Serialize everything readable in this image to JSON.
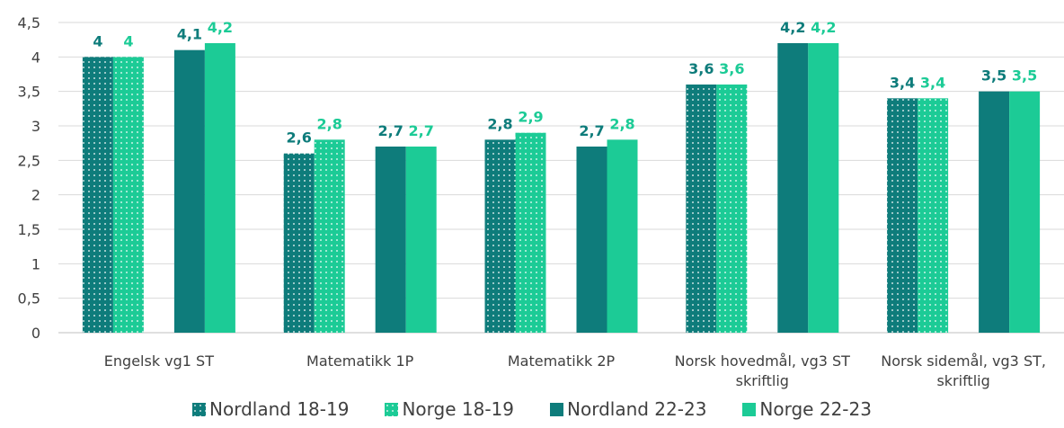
{
  "chart_data": {
    "type": "bar",
    "categories": [
      "Engelsk vg1 ST",
      "Matematikk 1P",
      "Matematikk 2P",
      "Norsk hovedmål, vg3 ST skriftlig",
      "Norsk sidemål, vg3 ST, skriftlig"
    ],
    "series": [
      {
        "name": "Nordland 18-19",
        "color": "#0e7c7b",
        "pattern": "dotted",
        "values": [
          4,
          2.6,
          2.8,
          3.6,
          3.4
        ],
        "value_labels": [
          "4",
          "2,6",
          "2,8",
          "3,6",
          "3,4"
        ]
      },
      {
        "name": "Norge 18-19",
        "color": "#1ccb96",
        "pattern": "dotted",
        "values": [
          4,
          2.8,
          2.9,
          3.6,
          3.4
        ],
        "value_labels": [
          "4",
          "2,8",
          "2,9",
          "3,6",
          "3,4"
        ]
      },
      {
        "name": "Nordland 22-23",
        "color": "#0e7c7b",
        "pattern": "solid",
        "values": [
          4.1,
          2.7,
          2.7,
          4.2,
          3.5
        ],
        "value_labels": [
          "4,1",
          "2,7",
          "2,7",
          "4,2",
          "3,5"
        ]
      },
      {
        "name": "Norge 22-23",
        "color": "#1ccb96",
        "pattern": "solid",
        "values": [
          4.2,
          2.7,
          2.8,
          4.2,
          3.5
        ],
        "value_labels": [
          "4,2",
          "2,7",
          "2,8",
          "4,2",
          "3,5"
        ]
      }
    ],
    "ylim": [
      0,
      4.5
    ],
    "yticks": [
      0,
      {
        "value": 0.5,
        "label": "0,5"
      },
      1,
      {
        "value": 1.5,
        "label": "1,5"
      },
      2,
      {
        "value": 2.5,
        "label": "2,5"
      },
      3,
      {
        "value": 3.5,
        "label": "3,5"
      },
      4,
      {
        "value": 4.5,
        "label": "4,5"
      }
    ],
    "grid": true,
    "legend": "bottom"
  }
}
